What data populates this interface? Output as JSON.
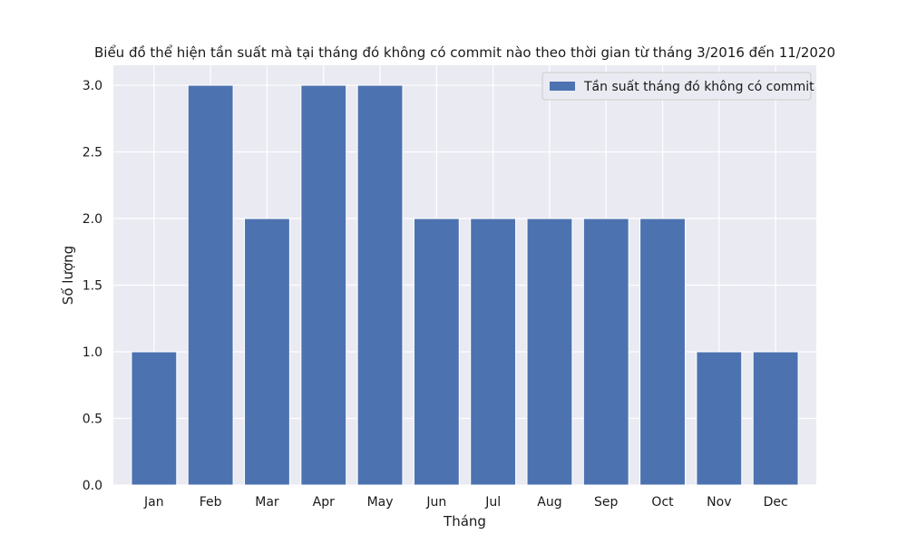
{
  "chart_data": {
    "type": "bar",
    "title": "Biểu đồ thể hiện tần suất mà tại tháng đó không có commit nào theo thời gian từ tháng 3/2016 đến 11/2020",
    "xlabel": "Tháng",
    "ylabel": "Số lượng",
    "categories": [
      "Jan",
      "Feb",
      "Mar",
      "Apr",
      "May",
      "Jun",
      "Jul",
      "Aug",
      "Sep",
      "Oct",
      "Nov",
      "Dec"
    ],
    "series": [
      {
        "name": "Tần suất tháng đó không có commit",
        "values": [
          1,
          3,
          2,
          3,
          3,
          2,
          2,
          2,
          2,
          2,
          1,
          1
        ]
      }
    ],
    "ylim": [
      0,
      3.15
    ],
    "yticks": [
      "0.0",
      "0.5",
      "1.0",
      "1.5",
      "2.0",
      "2.5",
      "3.0"
    ],
    "grid": true,
    "legend_position": "top-right",
    "colors": {
      "bar": "#4c72b0",
      "plot_background": "#eaeaf2",
      "grid": "#ffffff"
    }
  }
}
